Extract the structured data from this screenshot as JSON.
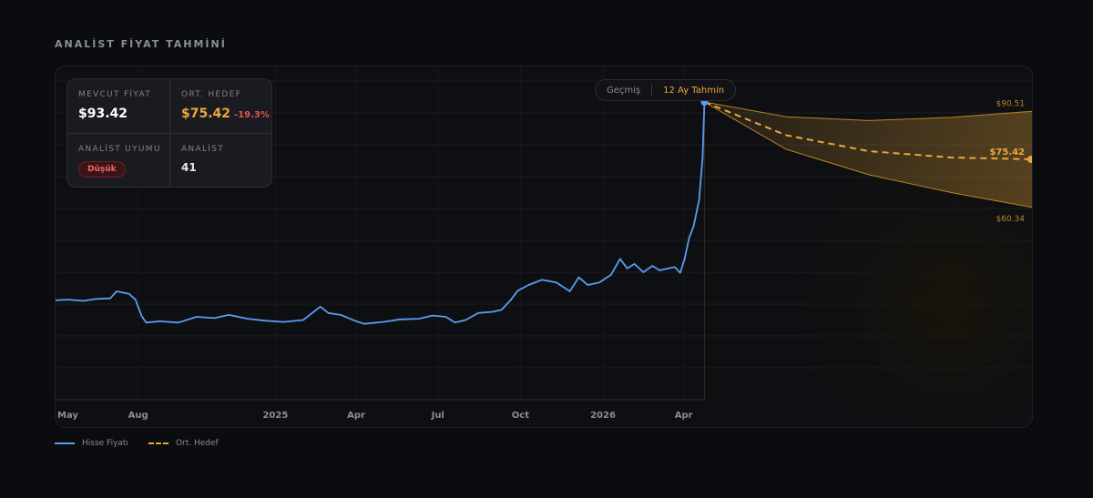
{
  "section_title": "ANALİST FİYAT TAHMİNİ",
  "toggle": {
    "historical": "Geçmiş",
    "forecast": "12 Ay Tahmin",
    "active": "forecast"
  },
  "stats": {
    "current_label": "MEVCUT FİYAT",
    "current_value": "$93.42",
    "target_label": "ORT. HEDEF",
    "target_value": "$75.42",
    "target_change": "-19.3%",
    "consensus_label": "ANALİST UYUMU",
    "consensus_value": "Düşük",
    "analysts_label": "ANALİST",
    "analysts_value": "41"
  },
  "legend": {
    "price": "Hisse Fiyatı",
    "target": "Ort. Hedef"
  },
  "colors": {
    "price": "#5b9cf0",
    "target": "#e9a93a",
    "negative": "#e3524f",
    "background": "#0b0c0f"
  },
  "chart_data": {
    "type": "line",
    "x_axis": "date",
    "x_range": [
      "2024-05-01",
      "2027-04-24"
    ],
    "x_ticks": [
      {
        "date": "2024-05-01",
        "label": "May"
      },
      {
        "date": "2024-08-01",
        "label": "Aug"
      },
      {
        "date": "2025-01-01",
        "label": "2025"
      },
      {
        "date": "2025-04-01",
        "label": "Apr"
      },
      {
        "date": "2025-07-01",
        "label": "Jul"
      },
      {
        "date": "2025-10-01",
        "label": "Oct"
      },
      {
        "date": "2026-01-01",
        "label": "2026"
      },
      {
        "date": "2026-04-01",
        "label": "Apr"
      }
    ],
    "ylim": [
      0,
      100
    ],
    "grid": true,
    "series": [
      {
        "name": "Hisse Fiyatı",
        "points": [
          [
            "2024-05-01",
            31.2
          ],
          [
            "2024-05-15",
            31.4
          ],
          [
            "2024-06-01",
            31.0
          ],
          [
            "2024-06-15",
            31.6
          ],
          [
            "2024-07-01",
            31.8
          ],
          [
            "2024-07-08",
            34.0
          ],
          [
            "2024-07-22",
            33.2
          ],
          [
            "2024-07-29",
            31.4
          ],
          [
            "2024-08-05",
            26.2
          ],
          [
            "2024-08-10",
            24.2
          ],
          [
            "2024-08-25",
            24.6
          ],
          [
            "2024-09-15",
            24.2
          ],
          [
            "2024-10-05",
            26.0
          ],
          [
            "2024-10-25",
            25.6
          ],
          [
            "2024-11-10",
            26.6
          ],
          [
            "2024-12-01",
            25.4
          ],
          [
            "2024-12-20",
            24.8
          ],
          [
            "2025-01-10",
            24.4
          ],
          [
            "2025-02-01",
            25.0
          ],
          [
            "2025-02-20",
            29.2
          ],
          [
            "2025-03-01",
            27.2
          ],
          [
            "2025-03-15",
            26.6
          ],
          [
            "2025-04-01",
            24.6
          ],
          [
            "2025-04-10",
            23.8
          ],
          [
            "2025-05-01",
            24.4
          ],
          [
            "2025-05-20",
            25.2
          ],
          [
            "2025-06-10",
            25.4
          ],
          [
            "2025-06-25",
            26.4
          ],
          [
            "2025-07-10",
            26.0
          ],
          [
            "2025-07-20",
            24.2
          ],
          [
            "2025-08-01",
            25.0
          ],
          [
            "2025-08-15",
            27.2
          ],
          [
            "2025-09-01",
            27.6
          ],
          [
            "2025-09-10",
            28.2
          ],
          [
            "2025-09-20",
            31.2
          ],
          [
            "2025-09-28",
            34.2
          ],
          [
            "2025-10-10",
            36.0
          ],
          [
            "2025-10-25",
            37.6
          ],
          [
            "2025-11-10",
            36.8
          ],
          [
            "2025-11-25",
            34.0
          ],
          [
            "2025-12-05",
            38.4
          ],
          [
            "2025-12-15",
            36.0
          ],
          [
            "2025-12-28",
            36.8
          ],
          [
            "2026-01-10",
            39.2
          ],
          [
            "2026-01-20",
            44.2
          ],
          [
            "2026-01-28",
            41.2
          ],
          [
            "2026-02-05",
            42.6
          ],
          [
            "2026-02-15",
            40.0
          ],
          [
            "2026-02-25",
            42.0
          ],
          [
            "2026-03-05",
            40.6
          ],
          [
            "2026-03-15",
            41.2
          ],
          [
            "2026-03-22",
            41.6
          ],
          [
            "2026-03-28",
            39.8
          ],
          [
            "2026-04-02",
            44.2
          ],
          [
            "2026-04-07",
            50.8
          ],
          [
            "2026-04-12",
            54.4
          ],
          [
            "2026-04-18",
            62.6
          ],
          [
            "2026-04-22",
            76.0
          ],
          [
            "2026-04-24",
            93.42
          ]
        ]
      },
      {
        "name": "Ort. Hedef",
        "points": [
          [
            "2026-04-24",
            93.42
          ],
          [
            "2026-07-24",
            83.0
          ],
          [
            "2026-10-24",
            78.0
          ],
          [
            "2027-01-24",
            76.0
          ],
          [
            "2027-04-24",
            75.42
          ]
        ]
      }
    ],
    "forecast_band": {
      "high": [
        [
          "2026-04-24",
          93.42
        ],
        [
          "2026-07-24",
          88.8
        ],
        [
          "2026-10-24",
          87.6
        ],
        [
          "2027-01-24",
          88.6
        ],
        [
          "2027-04-24",
          90.51
        ]
      ],
      "low": [
        [
          "2026-04-24",
          93.42
        ],
        [
          "2026-07-24",
          78.6
        ],
        [
          "2026-10-24",
          70.6
        ],
        [
          "2027-01-24",
          65.0
        ],
        [
          "2027-04-24",
          60.34
        ]
      ]
    },
    "labels": {
      "high": "$90.51",
      "target": "$75.42",
      "low": "$60.34"
    }
  }
}
